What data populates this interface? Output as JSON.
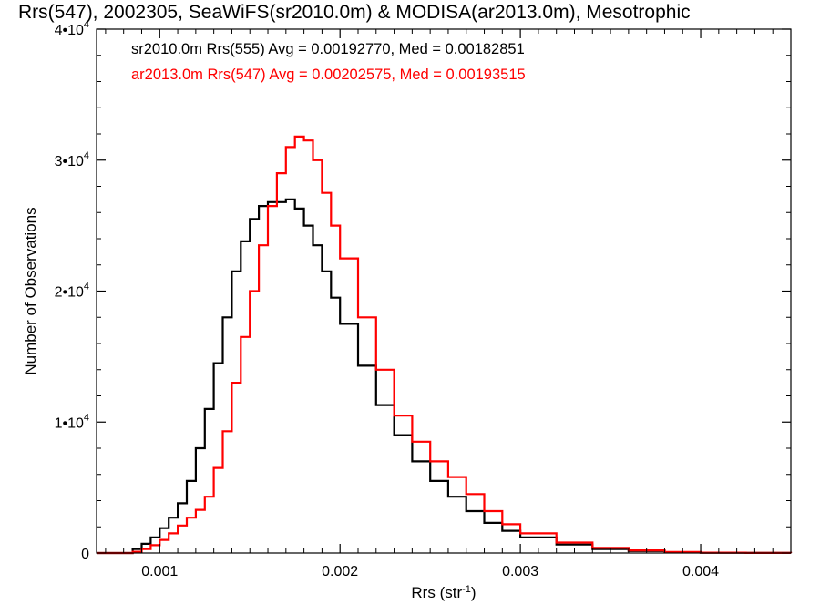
{
  "chart_data": {
    "type": "line",
    "title": "Rrs(547), 2002305, SeaWiFS(sr2010.0m) & MODISA(ar2013.0m), Mesotrophic",
    "xlabel": "Rrs (str⁻¹)",
    "xlabel_main": "Rrs (str",
    "xlabel_sup": "-1",
    "xlabel_end": ")",
    "ylabel": "Number of Observations",
    "xlim": [
      0.00065,
      0.0045
    ],
    "ylim": [
      0,
      40000
    ],
    "x_ticks": [
      {
        "value": 0.001,
        "label": "0.001"
      },
      {
        "value": 0.002,
        "label": "0.002"
      },
      {
        "value": 0.003,
        "label": "0.003"
      },
      {
        "value": 0.004,
        "label": "0.004"
      }
    ],
    "y_ticks": [
      {
        "value": 0,
        "label": "0"
      },
      {
        "value": 10000,
        "label": "1•10",
        "sup": "4"
      },
      {
        "value": 20000,
        "label": "2•10",
        "sup": "4"
      },
      {
        "value": 30000,
        "label": "3•10",
        "sup": "4"
      },
      {
        "value": 40000,
        "label": "4•10",
        "sup": "4"
      }
    ],
    "grid": false,
    "annotations": [
      {
        "text": "sr2010.0m Rrs(555) Avg = 0.00192770, Med = 0.00182851",
        "color": "#000000"
      },
      {
        "text": "ar2013.0m Rrs(547) Avg = 0.00202575, Med = 0.00193515",
        "color": "#ff0000"
      }
    ],
    "series": [
      {
        "color": "#000000",
        "style": "step",
        "x": [
          0.00065,
          0.0008,
          0.00085,
          0.0009,
          0.00095,
          0.001,
          0.00105,
          0.0011,
          0.00115,
          0.0012,
          0.00125,
          0.0013,
          0.00135,
          0.0014,
          0.00145,
          0.0015,
          0.00155,
          0.0016,
          0.00165,
          0.0017,
          0.00175,
          0.0018,
          0.00185,
          0.0019,
          0.00195,
          0.002,
          0.0021,
          0.0022,
          0.0023,
          0.0024,
          0.0025,
          0.0026,
          0.0027,
          0.0028,
          0.0029,
          0.003,
          0.0032,
          0.0034,
          0.0036,
          0.0038,
          0.004,
          0.00425,
          0.0045
        ],
        "y": [
          0,
          0,
          300,
          700,
          1200,
          1900,
          2700,
          3800,
          5500,
          8000,
          11000,
          14500,
          18000,
          21500,
          23800,
          25500,
          26500,
          26800,
          26800,
          27000,
          26300,
          25000,
          23500,
          21500,
          19500,
          17500,
          14300,
          11300,
          9000,
          7000,
          5500,
          4300,
          3200,
          2300,
          1700,
          1200,
          650,
          300,
          150,
          60,
          20,
          5,
          0
        ]
      },
      {
        "color": "#ff0000",
        "style": "step",
        "x": [
          0.00065,
          0.0008,
          0.00085,
          0.0009,
          0.00095,
          0.001,
          0.00105,
          0.0011,
          0.00115,
          0.0012,
          0.00125,
          0.0013,
          0.00135,
          0.0014,
          0.00145,
          0.0015,
          0.00155,
          0.0016,
          0.00165,
          0.0017,
          0.00175,
          0.0018,
          0.00185,
          0.0019,
          0.00195,
          0.002,
          0.0021,
          0.0022,
          0.0023,
          0.0024,
          0.0025,
          0.0026,
          0.0027,
          0.0028,
          0.0029,
          0.003,
          0.0032,
          0.0034,
          0.0036,
          0.0038,
          0.004,
          0.00425,
          0.0045
        ],
        "y": [
          0,
          0,
          100,
          300,
          600,
          1000,
          1500,
          2100,
          2700,
          3300,
          4300,
          6500,
          9300,
          13000,
          16500,
          20000,
          23500,
          26500,
          29000,
          31000,
          31800,
          31500,
          30000,
          27500,
          25000,
          22500,
          18000,
          14000,
          10500,
          8500,
          7000,
          5800,
          4500,
          3200,
          2200,
          1500,
          800,
          400,
          200,
          80,
          30,
          10,
          0
        ]
      }
    ]
  }
}
